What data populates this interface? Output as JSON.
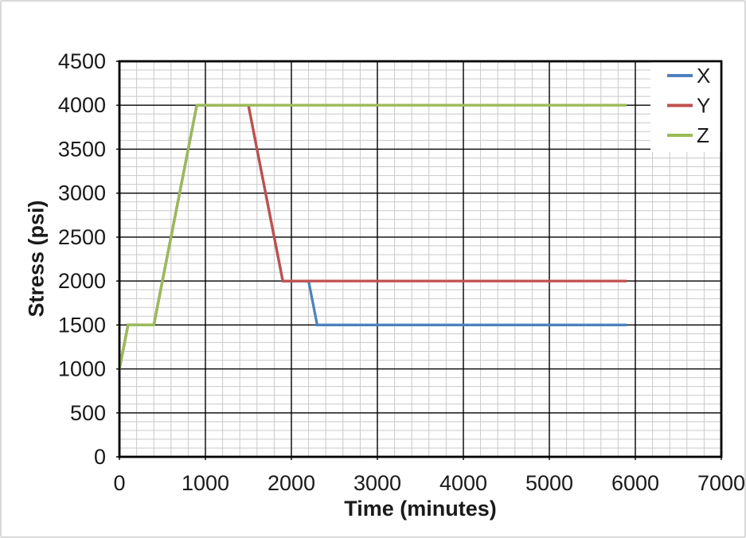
{
  "window": {
    "background": "#FFFFFF",
    "frame_border_color": "#D8D8D8"
  },
  "chart_data": {
    "type": "line",
    "title": "",
    "xlabel": "Time (minutes)",
    "ylabel": "Stress (psi)",
    "xlim": [
      0,
      7000
    ],
    "ylim": [
      0,
      4500
    ],
    "x_major_step": 1000,
    "x_minor_step": 200,
    "y_major_step": 500,
    "y_minor_step": 100,
    "x_ticks": [
      "0",
      "1000",
      "2000",
      "3000",
      "4000",
      "5000",
      "6000",
      "7000"
    ],
    "y_ticks": [
      "0",
      "500",
      "1000",
      "1500",
      "2000",
      "2500",
      "3000",
      "3500",
      "4000",
      "4500"
    ],
    "grid": {
      "major": true,
      "minor": true,
      "major_color": "#000000",
      "minor_color": "#C9C9C9"
    },
    "plot_border_color": "#000000",
    "legend": {
      "position": "top-right-inside",
      "background": "#FFFFFF",
      "entries": [
        "X",
        "Y",
        "Z"
      ]
    },
    "series": [
      {
        "name": "X",
        "color": "#4F81BD",
        "points": [
          [
            0,
            1000
          ],
          [
            100,
            1500
          ],
          [
            400,
            1500
          ],
          [
            900,
            4000
          ],
          [
            1500,
            4000
          ],
          [
            1900,
            2000
          ],
          [
            2200,
            2000
          ],
          [
            2300,
            1500
          ],
          [
            5900,
            1500
          ]
        ]
      },
      {
        "name": "Y",
        "color": "#C0504D",
        "points": [
          [
            0,
            1000
          ],
          [
            100,
            1500
          ],
          [
            400,
            1500
          ],
          [
            900,
            4000
          ],
          [
            1500,
            4000
          ],
          [
            1900,
            2000
          ],
          [
            5900,
            2000
          ]
        ]
      },
      {
        "name": "Z",
        "color": "#9BBB59",
        "points": [
          [
            0,
            1000
          ],
          [
            100,
            1500
          ],
          [
            400,
            1500
          ],
          [
            900,
            4000
          ],
          [
            5900,
            4000
          ]
        ]
      }
    ]
  }
}
